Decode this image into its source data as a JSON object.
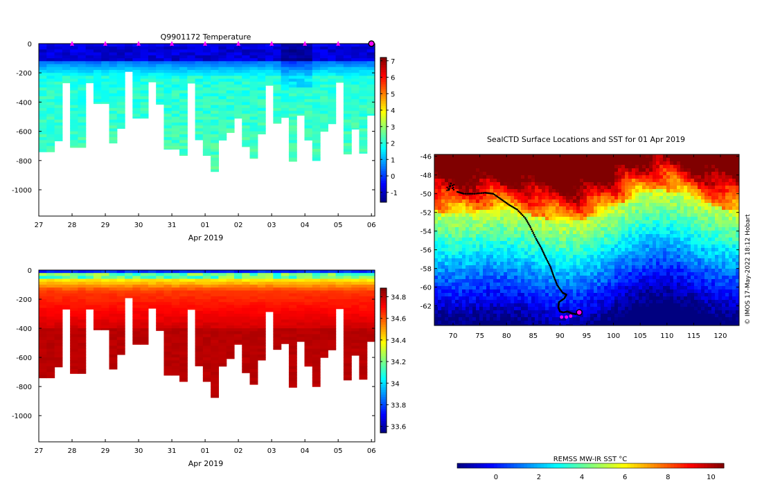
{
  "chart_data": [
    {
      "type": "heatmap",
      "title": "Q9901172  Temperature",
      "xlabel": "Apr 2019",
      "ylabel": "",
      "xticks": [
        "27",
        "28",
        "29",
        "30",
        "31",
        "01",
        "02",
        "03",
        "04",
        "05",
        "06"
      ],
      "xlim": [
        27,
        37.1
      ],
      "ylim": [
        -1180,
        0
      ],
      "yticks": [
        0,
        -200,
        -400,
        -600,
        -800,
        -1000
      ],
      "colorbar": {
        "min": -1.6,
        "max": 7.2,
        "ticks": [
          -1,
          0,
          1,
          2,
          3,
          4,
          5,
          6,
          7
        ]
      },
      "profile_depths": [
        740,
        740,
        665,
        268,
        710,
        710,
        268,
        410,
        410,
        680,
        580,
        190,
        510,
        510,
        262,
        415,
        722,
        722,
        765,
        270,
        658,
        765,
        875,
        660,
        608,
        510,
        705,
        785,
        618,
        285,
        545,
        505,
        805,
        490,
        660,
        800,
        600,
        548,
        265,
        755,
        585,
        750,
        490
      ],
      "surface_value": -1.1,
      "deep_value": 2.2,
      "markers": [
        "28",
        "29",
        "30",
        "31",
        "01",
        "02",
        "03",
        "04",
        "05",
        "06"
      ]
    },
    {
      "type": "heatmap",
      "title": "",
      "xlabel": "Apr 2019",
      "ylabel": "",
      "xticks": [
        "27",
        "28",
        "29",
        "30",
        "31",
        "01",
        "02",
        "03",
        "04",
        "05",
        "06"
      ],
      "xlim": [
        27,
        37.1
      ],
      "ylim": [
        -1180,
        0
      ],
      "yticks": [
        0,
        -200,
        -400,
        -600,
        -800,
        -1000
      ],
      "colorbar": {
        "min": 33.54,
        "max": 34.88,
        "ticks": [
          "33.6",
          "33.8",
          "34",
          "34.2",
          "34.4",
          "34.6",
          "34.8"
        ]
      },
      "surface_value": 33.7,
      "deep_value": 34.82
    },
    {
      "type": "heatmap",
      "title": "SealCTD Surface Locations and SST for 01 Apr 2019",
      "xlabel": "",
      "ylabel": "",
      "xlim": [
        66.5,
        123.5
      ],
      "ylim": [
        -64.1,
        -45.8
      ],
      "xticks": [
        70,
        75,
        80,
        85,
        90,
        95,
        100,
        105,
        110,
        115,
        120
      ],
      "yticks": [
        -46,
        -48,
        -50,
        -52,
        -54,
        -56,
        -58,
        -60,
        -62
      ],
      "credit": "© IMOS 17-May-2022 18:12 Hobart",
      "colorbar": {
        "label": "REMSS MW-IR SST °C",
        "min": -1.8,
        "max": 10.6,
        "ticks": [
          0,
          2,
          4,
          6,
          8,
          10
        ]
      },
      "track": [
        [
          70.8,
          -49.8
        ],
        [
          72,
          -50
        ],
        [
          74,
          -50
        ],
        [
          76,
          -49.9
        ],
        [
          77.5,
          -50
        ],
        [
          79,
          -50.6
        ],
        [
          80.5,
          -51.2
        ],
        [
          82,
          -51.7
        ],
        [
          83.5,
          -52.6
        ],
        [
          84.5,
          -53.6
        ],
        [
          85.5,
          -54.8
        ],
        [
          86.5,
          -55.8
        ],
        [
          87.3,
          -56.8
        ],
        [
          88.2,
          -57.8
        ],
        [
          88.8,
          -58.8
        ],
        [
          89.5,
          -59.8
        ],
        [
          90.5,
          -60.6
        ],
        [
          91.2,
          -60.8
        ],
        [
          90.8,
          -61.2
        ],
        [
          89.8,
          -61.6
        ],
        [
          89.7,
          -62.2
        ],
        [
          90,
          -62.6
        ],
        [
          90.6,
          -62.7
        ],
        [
          91.4,
          -62.6
        ],
        [
          92.2,
          -62.8
        ],
        [
          93.1,
          -62.9
        ]
      ],
      "released": [
        69.4,
        -49.2
      ],
      "last_position": [
        93.6,
        -62.7
      ],
      "daily_positions": [
        [
          90.3,
          -63.2
        ],
        [
          91.2,
          -63.2
        ],
        [
          92,
          -63.1
        ]
      ]
    }
  ]
}
